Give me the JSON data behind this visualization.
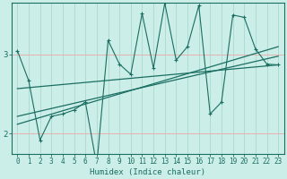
{
  "xlabel": "Humidex (Indice chaleur)",
  "background_color": "#cceee8",
  "line_color": "#1a6e62",
  "vgrid_color": "#aad8d0",
  "hgrid_color": "#e8b0b0",
  "xlim": [
    -0.5,
    23.5
  ],
  "ylim": [
    1.75,
    3.65
  ],
  "yticks": [
    2,
    3
  ],
  "xticks": [
    0,
    1,
    2,
    3,
    4,
    5,
    6,
    7,
    8,
    9,
    10,
    11,
    12,
    13,
    14,
    15,
    16,
    17,
    18,
    19,
    20,
    21,
    22,
    23
  ],
  "scatter_x": [
    0,
    1,
    2,
    3,
    4,
    5,
    6,
    7,
    8,
    9,
    10,
    11,
    12,
    13,
    14,
    15,
    16,
    17,
    18,
    19,
    20,
    21,
    22,
    23
  ],
  "scatter_y": [
    3.05,
    2.67,
    1.92,
    2.22,
    2.25,
    2.3,
    2.4,
    1.6,
    3.18,
    2.88,
    2.75,
    3.52,
    2.83,
    3.65,
    2.93,
    3.1,
    3.62,
    2.25,
    2.4,
    3.5,
    3.47,
    3.07,
    2.88,
    2.87
  ],
  "reg_lines": [
    {
      "x0": 0,
      "y0": 2.57,
      "x1": 23,
      "y1": 2.87
    },
    {
      "x0": 0,
      "y0": 2.12,
      "x1": 23,
      "y1": 3.1
    },
    {
      "x0": 0,
      "y0": 2.22,
      "x1": 23,
      "y1": 2.98
    }
  ],
  "tick_fontsize": 5.5,
  "xlabel_fontsize": 6.5
}
